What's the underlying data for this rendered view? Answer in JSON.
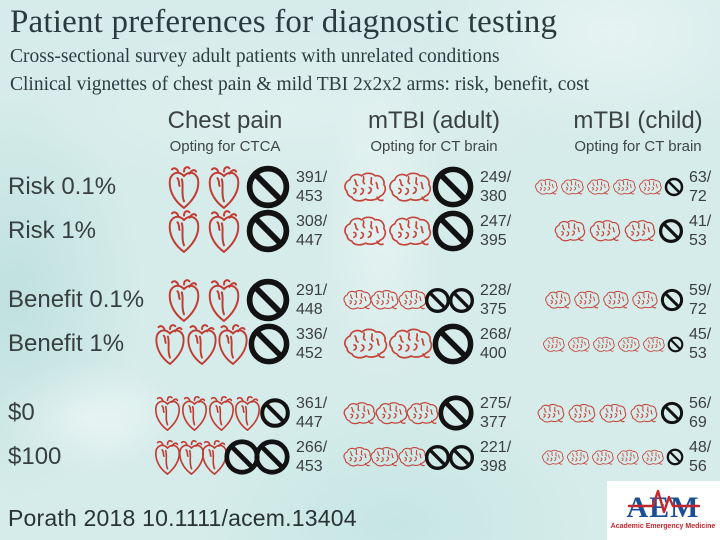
{
  "title": "Patient preferences for diagnostic testing",
  "subtitle1": "Cross-sectional survey adult patients with unrelated conditions",
  "subtitle2": "Clinical vignettes of chest pain & mild TBI 2x2x2 arms: risk, benefit, cost",
  "columns": [
    {
      "label": "Chest pain",
      "sublabel": "Opting for CTCA",
      "icon": "heart"
    },
    {
      "label": "mTBI (adult)",
      "sublabel": "Opting for CT brain",
      "icon": "brain"
    },
    {
      "label": "mTBI (child)",
      "sublabel": "Opting for CT brain",
      "icon": "brain"
    }
  ],
  "rows": [
    {
      "label": "Risk 0.1%",
      "gap_before": false,
      "cells": [
        {
          "numerator": "391/",
          "denominator": "453",
          "icons": 2,
          "bans": 1,
          "ih": 44,
          "bh": 46
        },
        {
          "numerator": "249/",
          "denominator": "380",
          "icons": 2,
          "bans": 1,
          "ih": 33,
          "bh": 44
        },
        {
          "numerator": "63/",
          "denominator": "72",
          "icons": 5,
          "bans": 1,
          "ih": 18,
          "bh": 20
        }
      ]
    },
    {
      "label": "Risk 1%",
      "gap_before": false,
      "cells": [
        {
          "numerator": "308/",
          "denominator": "447",
          "icons": 2,
          "bans": 1,
          "ih": 44,
          "bh": 46
        },
        {
          "numerator": "247/",
          "denominator": "395",
          "icons": 2,
          "bans": 1,
          "ih": 33,
          "bh": 44
        },
        {
          "numerator": "41/",
          "denominator": "53",
          "icons": 3,
          "bans": 1,
          "ih": 24,
          "bh": 26
        }
      ]
    },
    {
      "label": "Benefit 0.1%",
      "gap_before": true,
      "cells": [
        {
          "numerator": "291/",
          "denominator": "448",
          "icons": 2,
          "bans": 1,
          "ih": 44,
          "bh": 46
        },
        {
          "numerator": "228/",
          "denominator": "375",
          "icons": 3,
          "bans": 2,
          "ih": 22,
          "bh": 27
        },
        {
          "numerator": "59/",
          "denominator": "72",
          "icons": 4,
          "bans": 1,
          "ih": 20,
          "bh": 24
        }
      ]
    },
    {
      "label": "Benefit 1%",
      "gap_before": false,
      "cells": [
        {
          "numerator": "336/",
          "denominator": "452",
          "icons": 3,
          "bans": 1,
          "ih": 42,
          "bh": 44
        },
        {
          "numerator": "268/",
          "denominator": "400",
          "icons": 2,
          "bans": 1,
          "ih": 34,
          "bh": 44
        },
        {
          "numerator": "45/",
          "denominator": "53",
          "icons": 5,
          "bans": 1,
          "ih": 17,
          "bh": 17
        }
      ]
    },
    {
      "label": "$0",
      "gap_before": true,
      "cells": [
        {
          "numerator": "361/",
          "denominator": "447",
          "icons": 4,
          "bans": 1,
          "ih": 36,
          "bh": 32
        },
        {
          "numerator": "275/",
          "denominator": "377",
          "icons": 3,
          "bans": 1,
          "ih": 25,
          "bh": 38
        },
        {
          "numerator": "56/",
          "denominator": "69",
          "icons": 4,
          "bans": 1,
          "ih": 21,
          "bh": 24
        }
      ]
    },
    {
      "label": "$100",
      "gap_before": false,
      "cells": [
        {
          "numerator": "266/",
          "denominator": "453",
          "icons": 3,
          "bans": 2,
          "ih": 36,
          "bh": 38
        },
        {
          "numerator": "221/",
          "denominator": "398",
          "icons": 3,
          "bans": 2,
          "ih": 22,
          "bh": 27
        },
        {
          "numerator": "48/",
          "denominator": "56",
          "icons": 5,
          "bans": 1,
          "ih": 17,
          "bh": 18
        }
      ]
    }
  ],
  "footer": {
    "citation": "Porath 2018 10.1111/acem.13404"
  },
  "logo": {
    "text": "AEM",
    "tagline": "Academic Emergency Medicine"
  },
  "colors": {
    "background": "#d6ecea",
    "title": "#2b3a3c",
    "icon_red": "#c23b33",
    "ban_black": "#121212",
    "logo_blue": "#1b4e96",
    "logo_red": "#c1272d"
  },
  "chart_data": {
    "type": "table",
    "title": "Patient preferences for diagnostic testing",
    "categories": [
      "Risk 0.1%",
      "Risk 1%",
      "Benefit 0.1%",
      "Benefit 1%",
      "$0",
      "$100"
    ],
    "series": [
      {
        "name": "Chest pain — Opting for CTCA",
        "values": [
          "391/453",
          "308/447",
          "291/448",
          "336/452",
          "361/447",
          "266/453"
        ]
      },
      {
        "name": "mTBI (adult) — Opting for CT brain",
        "values": [
          "249/380",
          "247/395",
          "228/375",
          "268/400",
          "275/377",
          "221/398"
        ]
      },
      {
        "name": "mTBI (child) — Opting for CT brain",
        "values": [
          "63/72",
          "41/53",
          "59/72",
          "45/53",
          "56/69",
          "48/56"
        ]
      }
    ],
    "legend_position": "top",
    "grid": false
  }
}
